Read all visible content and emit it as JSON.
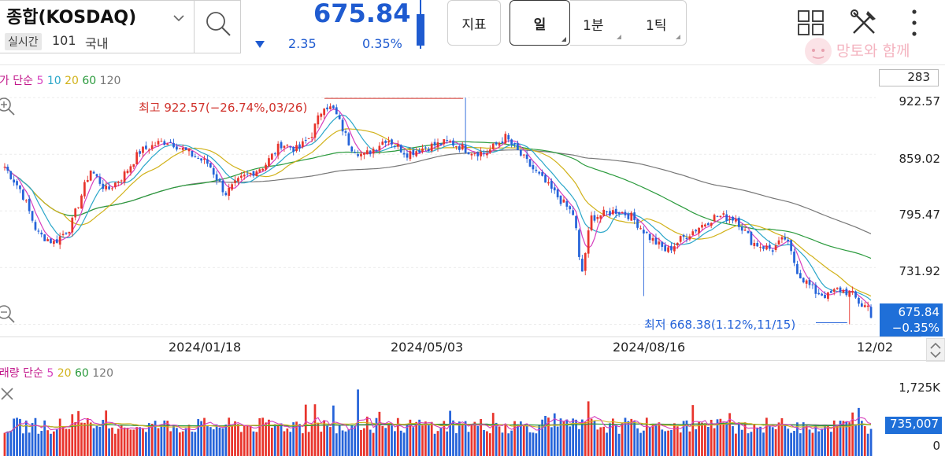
{
  "header": {
    "title": "종합(KOSDAQ)",
    "realtime_badge": "실시간",
    "code": "101",
    "market": "국내",
    "price": "675.84",
    "change": "2.35",
    "change_pct": "0.35%"
  },
  "toolbar": {
    "indicator_label": "지표",
    "period_day": "일",
    "period_min": "1분",
    "period_tick": "1틱"
  },
  "watermark": "망토와 함께",
  "price_legend": {
    "prefix": "주가 단순",
    "ma5": "5",
    "ma10": "10",
    "ma20": "20",
    "ma60": "60",
    "ma120": "120"
  },
  "volume_legend": {
    "prefix": "거래량 단순",
    "ma5": "5",
    "ma20": "20",
    "ma60": "60",
    "ma120": "120"
  },
  "visible_count": "283",
  "high_annotation": "최고 922.57(−26.74%,03/26)",
  "low_annotation": "최저 668.38(1.12%,11/15)",
  "current_label": {
    "price": "675.84",
    "pct": "−0.35%"
  },
  "volume_current": "735,007",
  "y_axis": [
    "922.57",
    "859.02",
    "795.47",
    "731.92"
  ],
  "x_axis": [
    "2024/01/18",
    "2024/05/03",
    "2024/08/16",
    "12/02"
  ],
  "volume_axis": {
    "top": "1,725K",
    "bottom": "0"
  },
  "colors": {
    "up": "#e8342c",
    "down": "#2563d9",
    "accent": "#1f5bd0",
    "ma5": "#d63fbf",
    "ma10": "#2aa6c9",
    "ma20": "#d1b21a",
    "ma60": "#2a9a3c",
    "ma120": "#777777"
  },
  "chart_data": {
    "type": "candlestick",
    "y_range": [
      660,
      935
    ],
    "high": 922.57,
    "low": 668.38,
    "close": 675.84,
    "anchors": [
      [
        0,
        845
      ],
      [
        10,
        818
      ],
      [
        20,
        770
      ],
      [
        30,
        760
      ],
      [
        40,
        778
      ],
      [
        52,
        842
      ],
      [
        62,
        818
      ],
      [
        72,
        835
      ],
      [
        82,
        862
      ],
      [
        94,
        872
      ],
      [
        100,
        874
      ],
      [
        112,
        860
      ],
      [
        124,
        848
      ],
      [
        134,
        815
      ],
      [
        144,
        832
      ],
      [
        158,
        847
      ],
      [
        168,
        871
      ],
      [
        178,
        864
      ],
      [
        186,
        880
      ],
      [
        194,
        915
      ],
      [
        200,
        908
      ],
      [
        210,
        868
      ],
      [
        218,
        857
      ],
      [
        232,
        877
      ],
      [
        244,
        860
      ],
      [
        256,
        867
      ],
      [
        270,
        873
      ],
      [
        282,
        863
      ],
      [
        292,
        860
      ],
      [
        304,
        878
      ],
      [
        318,
        848
      ],
      [
        334,
        815
      ],
      [
        346,
        790
      ],
      [
        350,
        720
      ],
      [
        356,
        788
      ],
      [
        372,
        796
      ],
      [
        380,
        790
      ],
      [
        392,
        765
      ],
      [
        402,
        750
      ],
      [
        410,
        763
      ],
      [
        422,
        778
      ],
      [
        432,
        790
      ],
      [
        444,
        787
      ],
      [
        454,
        760
      ],
      [
        466,
        752
      ],
      [
        474,
        765
      ],
      [
        482,
        725
      ],
      [
        492,
        705
      ],
      [
        500,
        700
      ],
      [
        506,
        708
      ],
      [
        514,
        703
      ],
      [
        520,
        690
      ],
      [
        526,
        688
      ]
    ]
  }
}
